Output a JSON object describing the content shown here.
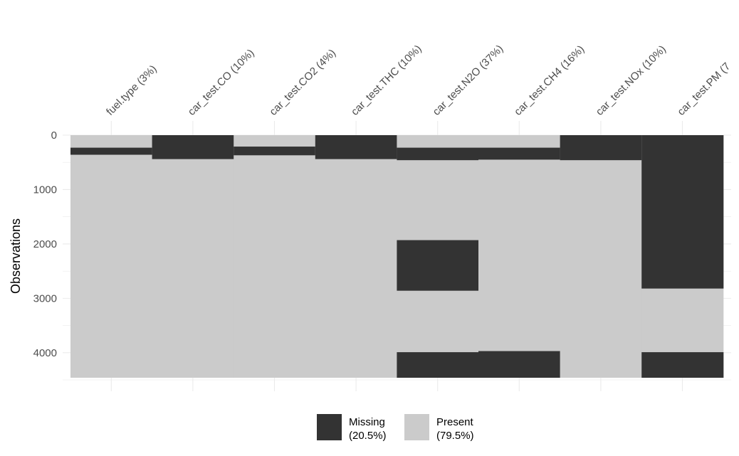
{
  "chart_data": {
    "type": "heatmap",
    "title": "",
    "ylabel": "Observations",
    "xlabel": "",
    "ylim": [
      0,
      4500
    ],
    "y_reversed": true,
    "y_ticks": [
      0,
      1000,
      2000,
      3000,
      4000
    ],
    "grid": true,
    "legend_position": "bottom",
    "columns": [
      "fuel.type (3%)",
      "car_test.CO (10%)",
      "car_test.CO2 (4%)",
      "car_test.THC (10%)",
      "car_test.N2O (37%)",
      "car_test.CH4 (16%)",
      "car_test.NOx (10%)",
      "car_test.PM (7"
    ],
    "missing_ranges": [
      [
        [
          230,
          360
        ]
      ],
      [
        [
          0,
          440
        ]
      ],
      [
        [
          210,
          370
        ]
      ],
      [
        [
          0,
          440
        ]
      ],
      [
        [
          230,
          460
        ],
        [
          1930,
          2860
        ],
        [
          3990,
          4460
        ]
      ],
      [
        [
          230,
          450
        ],
        [
          3970,
          4460
        ]
      ],
      [
        [
          0,
          460
        ]
      ],
      [
        [
          0,
          2820
        ],
        [
          3990,
          4460
        ]
      ]
    ],
    "n_rows": 4460,
    "legend": [
      {
        "label": "Missing",
        "pct": "(20.5%)",
        "color": "#333333"
      },
      {
        "label": "Present",
        "pct": "(79.5%)",
        "color": "#cbcbcb"
      }
    ]
  }
}
